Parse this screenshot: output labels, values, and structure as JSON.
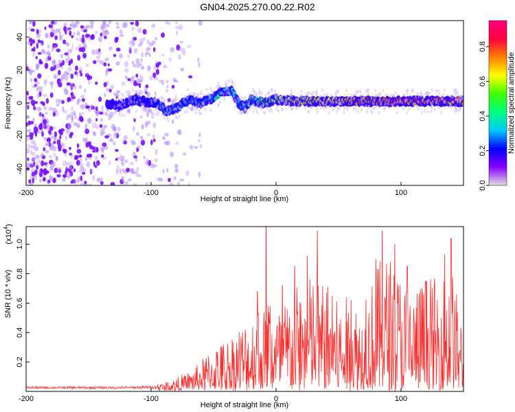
{
  "title": "GN04.2025.270.00.22.R02",
  "chart_data": [
    {
      "type": "heatmap",
      "name": "spectrogram",
      "xlabel": "Height of straight line (km)",
      "ylabel": "Frequency (Hz)",
      "xlim": [
        -200,
        150
      ],
      "ylim": [
        -50,
        50
      ],
      "xticks": [
        -200,
        -100,
        0,
        100
      ],
      "yticks": [
        -40,
        -20,
        0,
        20,
        40
      ],
      "colorbar": {
        "label": "Normalized spectral amplitude",
        "range": [
          0,
          0.95
        ],
        "ticks": [
          0.0,
          0.2,
          0.4,
          0.6,
          0.8
        ],
        "colors": [
          "#e0e0e0",
          "#8a00ff",
          "#0000ff",
          "#00c8ff",
          "#00ff80",
          "#40ff00",
          "#ffff00",
          "#ff8000",
          "#ff0040",
          "#ff0080"
        ]
      },
      "ridge": {
        "x": [
          -135,
          -125,
          -115,
          -105,
          -95,
          -88,
          -80,
          -70,
          -60,
          -50,
          -45,
          -40,
          -35,
          -30,
          -25,
          -20,
          -15,
          -10,
          0,
          20,
          50,
          80,
          110,
          150
        ],
        "y": [
          0,
          -2,
          2,
          1,
          0,
          -5,
          -3,
          2,
          0,
          3,
          6,
          8,
          7,
          0,
          -3,
          2,
          1,
          0,
          2,
          1,
          1,
          1,
          1,
          1
        ],
        "amplitude": [
          0.15,
          0.2,
          0.25,
          0.2,
          0.25,
          0.35,
          0.3,
          0.3,
          0.3,
          0.35,
          0.4,
          0.4,
          0.35,
          0.3,
          0.35,
          0.4,
          0.45,
          0.5,
          0.6,
          0.65,
          0.7,
          0.75,
          0.8,
          0.75
        ]
      }
    },
    {
      "type": "line",
      "name": "snr",
      "xlabel": "Height of straight line (km)",
      "ylabel": "SNR (10 * v/v)",
      "y_multiplier": "(x10",
      "y_multiplier_exp": "4",
      "xlim": [
        -200,
        150
      ],
      "ylim": [
        0,
        1.12
      ],
      "xticks": [
        -200,
        -100,
        0,
        100
      ],
      "yticks": [
        0.2,
        0.4,
        0.6,
        0.8,
        1.0
      ],
      "color": "#ff2a2a",
      "envelope": {
        "x": [
          -200,
          -120,
          -100,
          -90,
          -80,
          -70,
          -60,
          -50,
          -40,
          -30,
          -20,
          -15,
          -10,
          -5,
          0,
          10,
          20,
          30,
          40,
          50,
          60,
          70,
          80,
          90,
          100,
          110,
          120,
          130,
          140,
          150
        ],
        "y": [
          0.03,
          0.03,
          0.04,
          0.05,
          0.08,
          0.12,
          0.2,
          0.3,
          0.35,
          0.45,
          0.5,
          0.65,
          0.55,
          0.75,
          0.55,
          0.65,
          0.75,
          0.8,
          0.75,
          0.6,
          0.65,
          0.55,
          0.85,
          0.95,
          0.8,
          0.7,
          0.8,
          0.75,
          0.9,
          0.4
        ]
      },
      "peaks": [
        {
          "x": -15,
          "y": 0.68
        },
        {
          "x": -8,
          "y": 1.12
        },
        {
          "x": 5,
          "y": 0.72
        },
        {
          "x": 15,
          "y": 0.85
        },
        {
          "x": 25,
          "y": 0.92
        },
        {
          "x": 33,
          "y": 1.09
        },
        {
          "x": 45,
          "y": 0.65
        },
        {
          "x": 60,
          "y": 0.62
        },
        {
          "x": 72,
          "y": 0.62
        },
        {
          "x": 80,
          "y": 0.9
        },
        {
          "x": 85,
          "y": 1.09
        },
        {
          "x": 95,
          "y": 1.0
        },
        {
          "x": 105,
          "y": 0.85
        },
        {
          "x": 120,
          "y": 0.75
        },
        {
          "x": 135,
          "y": 0.93
        },
        {
          "x": 140,
          "y": 1.04
        }
      ]
    }
  ]
}
